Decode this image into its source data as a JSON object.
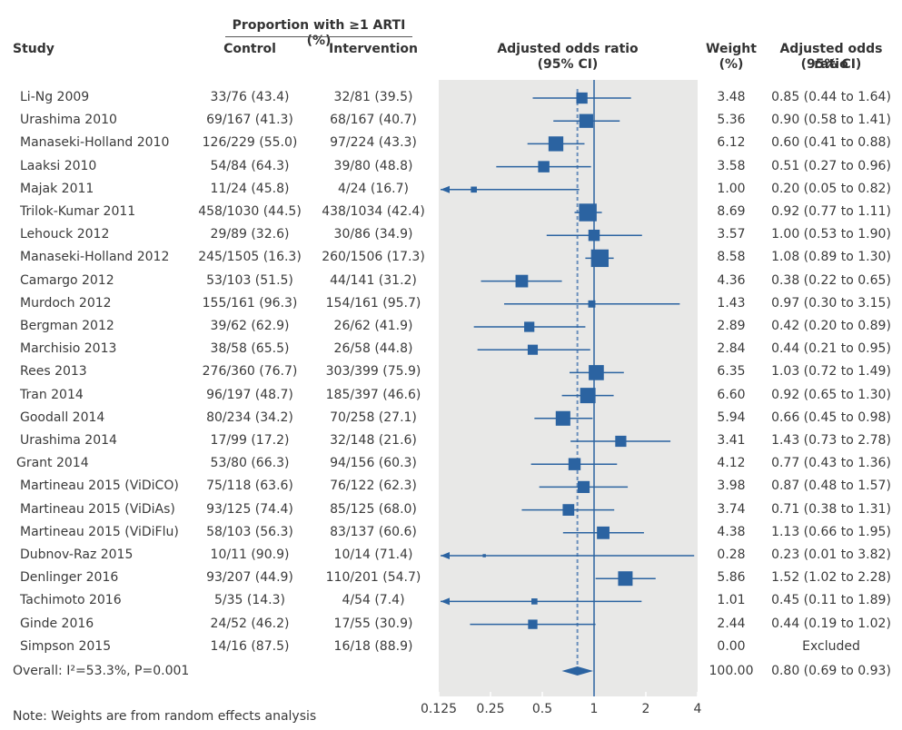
{
  "headers": {
    "group": "Proportion with ≥1 ARTI (%)",
    "study": "Study",
    "control": "Control",
    "intervention": "Intervention",
    "plot_title_1": "Adjusted odds ratio",
    "plot_title_2": "(95% CI)",
    "weight_1": "Weight",
    "weight_2": "(%)",
    "or_1": "Adjusted odds ratio",
    "or_2": "(95% CI)"
  },
  "rows": [
    {
      "study": "Li-Ng 2009",
      "control": "33/76 (43.4)",
      "intervention": "32/81 (39.5)",
      "weight": "3.48",
      "or_text": "0.85 (0.44 to 1.64)"
    },
    {
      "study": "Urashima 2010",
      "control": "69/167 (41.3)",
      "intervention": "68/167 (40.7)",
      "weight": "5.36",
      "or_text": "0.90 (0.58 to 1.41)"
    },
    {
      "study": "Manaseki-Holland 2010",
      "control": "126/229 (55.0)",
      "intervention": "97/224 (43.3)",
      "weight": "6.12",
      "or_text": "0.60 (0.41 to 0.88)"
    },
    {
      "study": "Laaksi 2010",
      "control": "54/84 (64.3)",
      "intervention": "39/80 (48.8)",
      "weight": "3.58",
      "or_text": "0.51 (0.27 to 0.96)"
    },
    {
      "study": "Majak 2011",
      "control": "11/24 (45.8)",
      "intervention": "4/24 (16.7)",
      "weight": "1.00",
      "or_text": "0.20 (0.05 to 0.82)"
    },
    {
      "study": "Trilok-Kumar 2011",
      "control": "458/1030 (44.5)",
      "intervention": "438/1034 (42.4)",
      "weight": "8.69",
      "or_text": "0.92 (0.77 to 1.11)"
    },
    {
      "study": "Lehouck 2012",
      "control": "29/89 (32.6)",
      "intervention": "30/86 (34.9)",
      "weight": "3.57",
      "or_text": "1.00 (0.53 to 1.90)"
    },
    {
      "study": "Manaseki-Holland 2012",
      "control": "245/1505 (16.3)",
      "intervention": "260/1506 (17.3)",
      "weight": "8.58",
      "or_text": "1.08 (0.89 to 1.30)"
    },
    {
      "study": "Camargo 2012",
      "control": "53/103 (51.5)",
      "intervention": "44/141 (31.2)",
      "weight": "4.36",
      "or_text": "0.38 (0.22 to 0.65)"
    },
    {
      "study": "Murdoch 2012",
      "control": "155/161 (96.3)",
      "intervention": "154/161 (95.7)",
      "weight": "1.43",
      "or_text": "0.97 (0.30 to 3.15)"
    },
    {
      "study": "Bergman 2012",
      "control": "39/62 (62.9)",
      "intervention": "26/62 (41.9)",
      "weight": "2.89",
      "or_text": "0.42 (0.20 to 0.89)"
    },
    {
      "study": "Marchisio 2013",
      "control": "38/58 (65.5)",
      "intervention": "26/58 (44.8)",
      "weight": "2.84",
      "or_text": "0.44 (0.21 to 0.95)"
    },
    {
      "study": "Rees 2013",
      "control": "276/360 (76.7)",
      "intervention": "303/399 (75.9)",
      "weight": "6.35",
      "or_text": "1.03 (0.72 to 1.49)"
    },
    {
      "study": "Tran 2014",
      "control": "96/197 (48.7)",
      "intervention": "185/397 (46.6)",
      "weight": "6.60",
      "or_text": "0.92 (0.65 to 1.30)"
    },
    {
      "study": "Goodall 2014",
      "control": "80/234 (34.2)",
      "intervention": "70/258 (27.1)",
      "weight": "5.94",
      "or_text": "0.66 (0.45 to 0.98)"
    },
    {
      "study": "Urashima 2014",
      "control": "17/99 (17.2)",
      "intervention": "32/148 (21.6)",
      "weight": "3.41",
      "or_text": "1.43 (0.73 to 2.78)"
    },
    {
      "study": "Grant 2014",
      "control": "53/80 (66.3)",
      "intervention": "94/156 (60.3)",
      "weight": "4.12",
      "or_text": "0.77 (0.43 to 1.36)"
    },
    {
      "study": "Martineau 2015 (ViDiCO)",
      "control": "75/118 (63.6)",
      "intervention": "76/122 (62.3)",
      "weight": "3.98",
      "or_text": "0.87 (0.48 to 1.57)"
    },
    {
      "study": "Martineau 2015 (ViDiAs)",
      "control": "93/125 (74.4)",
      "intervention": "85/125 (68.0)",
      "weight": "3.74",
      "or_text": "0.71 (0.38 to 1.31)"
    },
    {
      "study": "Martineau 2015 (ViDiFlu)",
      "control": "58/103 (56.3)",
      "intervention": "83/137 (60.6)",
      "weight": "4.38",
      "or_text": "1.13 (0.66 to 1.95)"
    },
    {
      "study": "Dubnov-Raz 2015",
      "control": "10/11 (90.9)",
      "intervention": "10/14 (71.4)",
      "weight": "0.28",
      "or_text": "0.23 (0.01 to 3.82)"
    },
    {
      "study": "Denlinger 2016",
      "control": "93/207 (44.9)",
      "intervention": "110/201 (54.7)",
      "weight": "5.86",
      "or_text": "1.52 (1.02 to 2.28)"
    },
    {
      "study": "Tachimoto 2016",
      "control": "5/35 (14.3)",
      "intervention": "4/54 (7.4)",
      "weight": "1.01",
      "or_text": "0.45 (0.11 to 1.89)"
    },
    {
      "study": "Ginde 2016",
      "control": "24/52 (46.2)",
      "intervention": "17/55 (30.9)",
      "weight": "2.44",
      "or_text": "0.44 (0.19 to 1.02)"
    },
    {
      "study": "Simpson 2015",
      "control": "14/16 (87.5)",
      "intervention": "16/18 (88.9)",
      "weight": "0.00",
      "or_text": "Excluded"
    }
  ],
  "overall": {
    "label": "Overall: I²=53.3%, P=0.001",
    "weight": "100.00",
    "or_text": "0.80 (0.69 to 0.93)"
  },
  "note": "Note: Weights are from random effects analysis",
  "colors": {
    "marker": "#2b63a1",
    "plot_bg": "#e8e8e7",
    "text": "#3a3a3a"
  },
  "chart_data": {
    "type": "forest",
    "title": "Adjusted odds ratio (95% CI)",
    "xscale": "log2",
    "xlim": [
      0.125,
      4
    ],
    "xticks": [
      0.125,
      0.25,
      0.5,
      1,
      2,
      4
    ],
    "xtick_labels": [
      "0.125",
      "0.25",
      "0.5",
      "1",
      "2",
      "4"
    ],
    "reference_line": 1,
    "pooled_line": 0.8,
    "points": [
      {
        "study": "Li-Ng 2009",
        "or": 0.85,
        "lo": 0.44,
        "hi": 1.64,
        "weight": 3.48
      },
      {
        "study": "Urashima 2010",
        "or": 0.9,
        "lo": 0.58,
        "hi": 1.41,
        "weight": 5.36
      },
      {
        "study": "Manaseki-Holland 2010",
        "or": 0.6,
        "lo": 0.41,
        "hi": 0.88,
        "weight": 6.12
      },
      {
        "study": "Laaksi 2010",
        "or": 0.51,
        "lo": 0.27,
        "hi": 0.96,
        "weight": 3.58
      },
      {
        "study": "Majak 2011",
        "or": 0.2,
        "lo": 0.05,
        "hi": 0.82,
        "weight": 1.0
      },
      {
        "study": "Trilok-Kumar 2011",
        "or": 0.92,
        "lo": 0.77,
        "hi": 1.11,
        "weight": 8.69
      },
      {
        "study": "Lehouck 2012",
        "or": 1.0,
        "lo": 0.53,
        "hi": 1.9,
        "weight": 3.57
      },
      {
        "study": "Manaseki-Holland 2012",
        "or": 1.08,
        "lo": 0.89,
        "hi": 1.3,
        "weight": 8.58
      },
      {
        "study": "Camargo 2012",
        "or": 0.38,
        "lo": 0.22,
        "hi": 0.65,
        "weight": 4.36
      },
      {
        "study": "Murdoch 2012",
        "or": 0.97,
        "lo": 0.3,
        "hi": 3.15,
        "weight": 1.43
      },
      {
        "study": "Bergman 2012",
        "or": 0.42,
        "lo": 0.2,
        "hi": 0.89,
        "weight": 2.89
      },
      {
        "study": "Marchisio 2013",
        "or": 0.44,
        "lo": 0.21,
        "hi": 0.95,
        "weight": 2.84
      },
      {
        "study": "Rees 2013",
        "or": 1.03,
        "lo": 0.72,
        "hi": 1.49,
        "weight": 6.35
      },
      {
        "study": "Tran 2014",
        "or": 0.92,
        "lo": 0.65,
        "hi": 1.3,
        "weight": 6.6
      },
      {
        "study": "Goodall 2014",
        "or": 0.66,
        "lo": 0.45,
        "hi": 0.98,
        "weight": 5.94
      },
      {
        "study": "Urashima 2014",
        "or": 1.43,
        "lo": 0.73,
        "hi": 2.78,
        "weight": 3.41
      },
      {
        "study": "Grant 2014",
        "or": 0.77,
        "lo": 0.43,
        "hi": 1.36,
        "weight": 4.12
      },
      {
        "study": "Martineau 2015 (ViDiCO)",
        "or": 0.87,
        "lo": 0.48,
        "hi": 1.57,
        "weight": 3.98
      },
      {
        "study": "Martineau 2015 (ViDiAs)",
        "or": 0.71,
        "lo": 0.38,
        "hi": 1.31,
        "weight": 3.74
      },
      {
        "study": "Martineau 2015 (ViDiFlu)",
        "or": 1.13,
        "lo": 0.66,
        "hi": 1.95,
        "weight": 4.38
      },
      {
        "study": "Dubnov-Raz 2015",
        "or": 0.23,
        "lo": 0.01,
        "hi": 3.82,
        "weight": 0.28
      },
      {
        "study": "Denlinger 2016",
        "or": 1.52,
        "lo": 1.02,
        "hi": 2.28,
        "weight": 5.86
      },
      {
        "study": "Tachimoto 2016",
        "or": 0.45,
        "lo": 0.11,
        "hi": 1.89,
        "weight": 1.01
      },
      {
        "study": "Ginde 2016",
        "or": 0.44,
        "lo": 0.19,
        "hi": 1.02,
        "weight": 2.44
      },
      {
        "study": "Simpson 2015",
        "or": null,
        "lo": null,
        "hi": null,
        "weight": 0.0
      }
    ],
    "overall": {
      "or": 0.8,
      "lo": 0.69,
      "hi": 0.93,
      "weight": 100.0
    }
  }
}
